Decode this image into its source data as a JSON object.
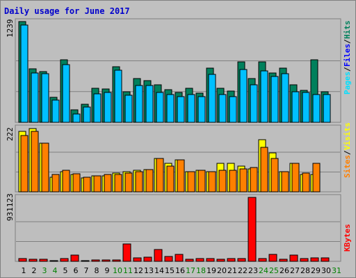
{
  "chart_data": {
    "type": "bar",
    "title": "Daily usage for June 2017",
    "categories": [
      "1",
      "2",
      "3",
      "4",
      "5",
      "6",
      "7",
      "8",
      "9",
      "10",
      "11",
      "12",
      "13",
      "14",
      "15",
      "16",
      "17",
      "18",
      "19",
      "20",
      "21",
      "22",
      "23",
      "24",
      "25",
      "26",
      "27",
      "28",
      "29",
      "30",
      "31"
    ],
    "weekend_days": [
      "3",
      "4",
      "10",
      "11",
      "17",
      "18",
      "24",
      "25",
      "31"
    ],
    "colors": {
      "hits": "#00805c",
      "files": "#00c0ff",
      "pages": "#00e0ff",
      "visits": "#ffff00",
      "sites": "#ff8000",
      "kbytes": "#ff0000",
      "weekday_label": "#000000",
      "weekend_label": "#008000",
      "title": "#0000cc",
      "separator_gray": "#808080"
    },
    "panels": [
      {
        "id": "hits-files-pages",
        "max_label": "1239",
        "ylim": [
          0,
          1239
        ],
        "legend": [
          "Pages",
          "Files",
          "Hits"
        ],
        "legend_colors": [
          "#00e0ff",
          "#0000ff",
          "#00805c"
        ],
        "series": [
          {
            "name": "Hits",
            "values": [
              1239,
              655,
              620,
              310,
              770,
              150,
              220,
              415,
              410,
              680,
              375,
              540,
              510,
              465,
              405,
              365,
              415,
              355,
              665,
              420,
              385,
              745,
              540,
              740,
              610,
              665,
              460,
              395,
              770,
              380,
              null
            ]
          },
          {
            "name": "Files",
            "values": [
              1200,
              605,
              595,
              270,
              705,
              105,
              190,
              350,
              365,
              640,
              335,
              450,
              450,
              370,
              340,
              315,
              345,
              315,
              590,
              340,
              320,
              650,
              465,
              635,
              565,
              595,
              380,
              370,
              345,
              340,
              null
            ]
          }
        ]
      },
      {
        "id": "visits-sites",
        "max_label": "222",
        "ylim": [
          0,
          222
        ],
        "legend": [
          "Sites",
          "Visits"
        ],
        "legend_colors": [
          "#ff8000",
          "#ffff00"
        ],
        "series": [
          {
            "name": "Visits",
            "values": [
              210,
              220,
              170,
              50,
              70,
              60,
              48,
              56,
              55,
              65,
              70,
              75,
              78,
              115,
              100,
              110,
              70,
              75,
              70,
              100,
              100,
              90,
              80,
              180,
              135,
              70,
              100,
              60,
              60,
              null,
              null
            ]
          },
          {
            "name": "Sites",
            "values": [
              195,
              210,
              168,
              60,
              75,
              62,
              50,
              55,
              60,
              60,
              65,
              70,
              78,
              115,
              90,
              110,
              70,
              75,
              70,
              75,
              75,
              80,
              85,
              155,
              115,
              70,
              100,
              65,
              100,
              null,
              null
            ]
          }
        ]
      },
      {
        "id": "kbytes",
        "max_label": "931123",
        "ylim": [
          0,
          931123
        ],
        "legend": [
          "KBytes"
        ],
        "legend_colors": [
          "#ff0000"
        ],
        "series": [
          {
            "name": "KBytes",
            "values": [
              40000,
              30000,
              30000,
              15000,
              40000,
              90000,
              12000,
              20000,
              25000,
              20000,
              250000,
              55000,
              60000,
              175000,
              75000,
              105000,
              35000,
              45000,
              40000,
              35000,
              40000,
              45000,
              931123,
              40000,
              100000,
              35000,
              95000,
              40000,
              50000,
              55000,
              null
            ]
          }
        ]
      }
    ]
  }
}
